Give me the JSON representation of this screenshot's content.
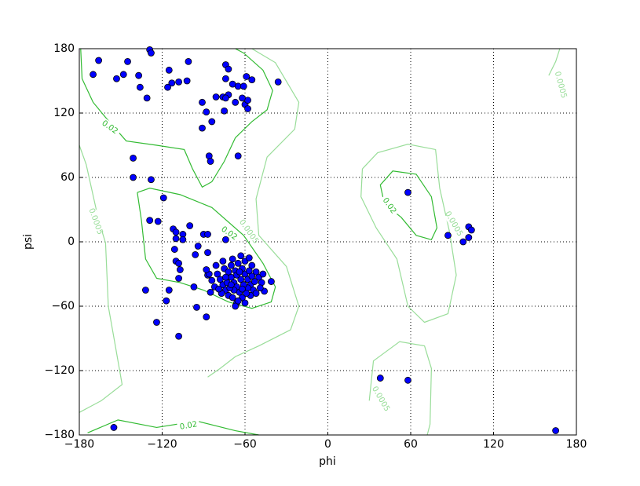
{
  "chart_data": {
    "type": "scatter",
    "x_label": "phi",
    "y_label": "psi",
    "xlim": [
      -180,
      180
    ],
    "ylim": [
      -180,
      180
    ],
    "xticks": [
      {
        "value": -180,
        "label": "−180"
      },
      {
        "value": -120,
        "label": "−120"
      },
      {
        "value": -60,
        "label": "−60"
      },
      0,
      60,
      120,
      180
    ],
    "yticks": [
      {
        "value": -180,
        "label": "−180"
      },
      {
        "value": -120,
        "label": "−120"
      },
      {
        "value": -60,
        "label": "−60"
      },
      0,
      60,
      120,
      180
    ],
    "grid": true,
    "color": "#0000ff",
    "x": [
      -166,
      -170,
      -153,
      -148,
      -145,
      -137,
      -136,
      -131,
      -129,
      -128,
      -115,
      -113,
      -116,
      -108,
      -102,
      -101,
      -74,
      -72,
      -74,
      -69,
      -65,
      -61,
      -55,
      -59,
      -60,
      -58,
      -58,
      -62,
      -67,
      -72,
      -76,
      -74,
      -81,
      -91,
      -88,
      -84,
      -91,
      -75,
      -65,
      -86,
      -85,
      -36,
      -141,
      -141,
      -128,
      -119,
      -129,
      -123,
      -112,
      -110,
      -105,
      -110,
      -105,
      -100,
      -90,
      -87,
      -74,
      -111,
      -94,
      -110,
      -108,
      -96,
      -87,
      -107,
      -108,
      -132,
      -115,
      -117,
      -124,
      -108,
      -95,
      -88,
      -97,
      -87,
      -41,
      -46,
      -66,
      -80,
      -78,
      -76,
      -74,
      -72,
      -70,
      -68,
      -66,
      -64,
      -62,
      -60,
      -58,
      -56,
      -54,
      -52,
      -50,
      -48,
      -75,
      -70,
      -65,
      -60,
      -55,
      -72,
      -67,
      -62,
      -57,
      -68,
      -63,
      -58,
      -53,
      -77,
      -73,
      -69,
      -65,
      -60,
      -56,
      -82,
      -84,
      -86,
      -88,
      -71,
      -66,
      -61,
      -59,
      -64,
      -74,
      -79,
      -52,
      -49,
      -47,
      -57,
      -63,
      -69,
      -76,
      -81,
      -85,
      -67,
      -62,
      -70,
      -55,
      58,
      87,
      102,
      104,
      98,
      102,
      38,
      58,
      165,
      -155
    ],
    "y": [
      169,
      156,
      152,
      156,
      168,
      155,
      144,
      134,
      179,
      176,
      160,
      148,
      144,
      149,
      150,
      168,
      165,
      161,
      152,
      147,
      145,
      145,
      151,
      154,
      128,
      132,
      124,
      134,
      130,
      137,
      135,
      134,
      135,
      130,
      121,
      112,
      106,
      122,
      80,
      80,
      75,
      149,
      78,
      60,
      58,
      41,
      20,
      19,
      12,
      9,
      7,
      3,
      2,
      15,
      7,
      7,
      2,
      -7,
      -4,
      -18,
      -20,
      -12,
      -10,
      -26,
      -34,
      -45,
      -45,
      -55,
      -75,
      -88,
      -61,
      -70,
      -42,
      -31,
      -37,
      -46,
      -57,
      -30,
      -35,
      -40,
      -45,
      -50,
      -33,
      -38,
      -42,
      -47,
      -52,
      -30,
      -35,
      -40,
      -45,
      -28,
      -33,
      -38,
      -25,
      -22,
      -20,
      -18,
      -22,
      -28,
      -27,
      -25,
      -27,
      -45,
      -35,
      -43,
      -37,
      -48,
      -38,
      -52,
      -55,
      -57,
      -50,
      -42,
      -36,
      -30,
      -26,
      -43,
      -31,
      -40,
      -48,
      -28,
      -33,
      -44,
      -48,
      -43,
      -30,
      -15,
      -13,
      -16,
      -18,
      -22,
      -47,
      -60,
      -44,
      -40,
      -32,
      46,
      6,
      14,
      11,
      0,
      4,
      -127,
      -129,
      -176,
      -173
    ],
    "contours": [
      {
        "level": 0.02,
        "label": "0.02",
        "color": "#33bb33",
        "x": [
          -179,
          -178,
          -170,
          -161,
          -146,
          -124,
          -104,
          -98,
          -91,
          -84,
          -75,
          -67,
          -55,
          -44,
          -40,
          -47,
          -61,
          -67
        ],
        "y": [
          180,
          152,
          130,
          116,
          94,
          90,
          86,
          68,
          51,
          56,
          75,
          97,
          112,
          123,
          141,
          160,
          176,
          180
        ]
      },
      {
        "level": 0.02,
        "label": "0.02",
        "color": "#33bb33",
        "x": [
          -138,
          -135,
          -132,
          -124,
          -107,
          -90,
          -72,
          -55,
          -41,
          -38,
          -47,
          -61,
          -84,
          -107,
          -129,
          -138
        ],
        "y": [
          46,
          20,
          -16,
          -34,
          -38,
          -45,
          -56,
          -62,
          -56,
          -42,
          -20,
          6,
          32,
          44,
          50,
          46
        ]
      },
      {
        "level": 0.02,
        "label": "0.02",
        "color": "#33bb33",
        "x": [
          53,
          41,
          38,
          47,
          64,
          75,
          79,
          75,
          64,
          53
        ],
        "y": [
          23,
          35,
          53,
          66,
          63,
          42,
          13,
          2,
          6,
          23
        ]
      },
      {
        "level": 0.02,
        "label": "0.02",
        "color": "#33bb33",
        "x": [
          -174,
          -152,
          -124,
          -95,
          -67,
          -50
        ],
        "y": [
          -178,
          -166,
          -173,
          -167,
          -176,
          -180
        ]
      },
      {
        "level": 0.0005,
        "label": "0.0005",
        "color": "#99dd99",
        "x": [
          -180,
          -175,
          -166,
          -161,
          -159,
          -155,
          -149,
          -164,
          -180
        ],
        "y": [
          90,
          72,
          20,
          -1,
          -60,
          -89,
          -133,
          -148,
          -159
        ]
      },
      {
        "level": 0.0005,
        "label": "0.0005",
        "color": "#99dd99",
        "x": [
          -55,
          -38,
          -21,
          -24,
          -44,
          -52,
          -50,
          -30,
          -21,
          -27,
          -50,
          -67,
          -78,
          -87
        ],
        "y": [
          180,
          167,
          130,
          105,
          79,
          40,
          6,
          -23,
          -60,
          -82,
          -97,
          -107,
          -118,
          -126
        ]
      },
      {
        "level": 0.0005,
        "label": "0.0005",
        "color": "#99dd99",
        "x": [
          25,
          24,
          35,
          50,
          58,
          70,
          87,
          93,
          88,
          81,
          78,
          58,
          36,
          25
        ],
        "y": [
          68,
          42,
          13,
          -16,
          -60,
          -75,
          -67,
          -31,
          10,
          50,
          86,
          91,
          83,
          68
        ]
      },
      {
        "level": 0.0005,
        "label": "0.0005",
        "color": "#99dd99",
        "x": [
          30,
          33,
          52,
          70,
          75,
          74,
          72
        ],
        "y": [
          -148,
          -111,
          -93,
          -97,
          -118,
          -170,
          -180
        ]
      },
      {
        "level": 0.0005,
        "label": "0.0005",
        "color": "#99dd99",
        "x": [
          160,
          165,
          168
        ],
        "y": [
          155,
          168,
          180
        ]
      }
    ]
  }
}
